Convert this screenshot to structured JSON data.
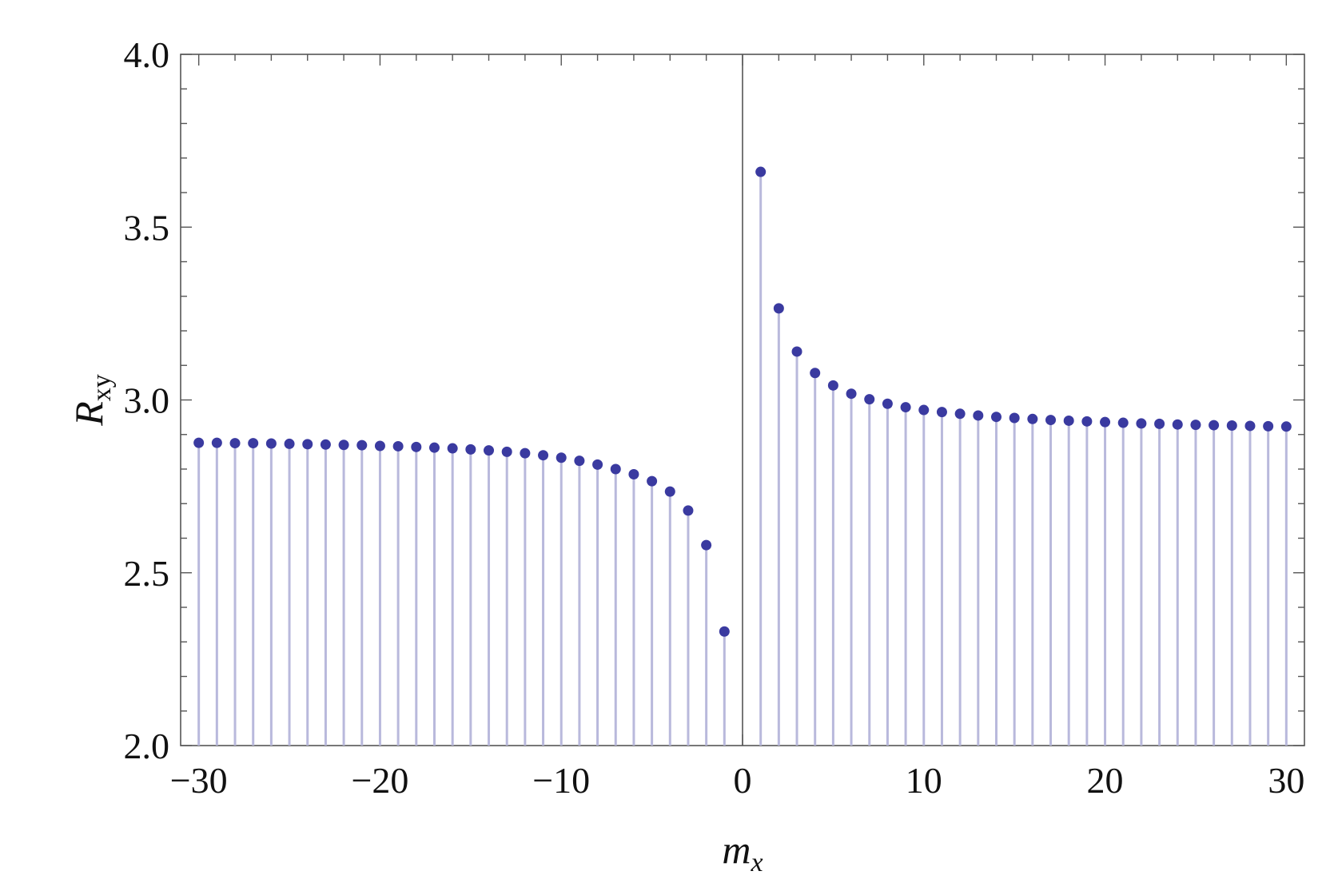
{
  "chart_data": {
    "type": "scatter",
    "style": "stem",
    "title": "",
    "xlabel": {
      "main": "m",
      "sub": "x"
    },
    "ylabel": {
      "main": "R",
      "sub": "xy"
    },
    "xlim": [
      -31,
      31
    ],
    "ylim": [
      2.0,
      4.0
    ],
    "x_ticks": [
      -30,
      -20,
      -10,
      0,
      10,
      20,
      30
    ],
    "x_tick_labels": [
      "−30",
      "−20",
      "−10",
      "0",
      "10",
      "20",
      "30"
    ],
    "y_ticks": [
      2.0,
      2.5,
      3.0,
      3.5,
      4.0
    ],
    "y_tick_labels": [
      "2.0",
      "2.5",
      "3.0",
      "3.5",
      "4.0"
    ],
    "grid": false,
    "colors": {
      "marker": "#3a3aa0",
      "stem": "#b9b9dc",
      "axis": "#555555"
    },
    "series": [
      {
        "x": [
          -30,
          -29,
          -28,
          -27,
          -26,
          -25,
          -24,
          -23,
          -22,
          -21,
          -20,
          -19,
          -18,
          -17,
          -16,
          -15,
          -14,
          -13,
          -12,
          -11,
          -10,
          -9,
          -8,
          -7,
          -6,
          -5,
          -4,
          -3,
          -2,
          -1,
          1,
          2,
          3,
          4,
          5,
          6,
          7,
          8,
          9,
          10,
          11,
          12,
          13,
          14,
          15,
          16,
          17,
          18,
          19,
          20,
          21,
          22,
          23,
          24,
          25,
          26,
          27,
          28,
          29,
          30
        ],
        "y": [
          2.876,
          2.876,
          2.875,
          2.875,
          2.874,
          2.873,
          2.872,
          2.871,
          2.87,
          2.869,
          2.867,
          2.866,
          2.864,
          2.862,
          2.86,
          2.857,
          2.854,
          2.85,
          2.846,
          2.84,
          2.833,
          2.824,
          2.813,
          2.8,
          2.785,
          2.765,
          2.735,
          2.68,
          2.58,
          2.33,
          3.66,
          3.265,
          3.14,
          3.078,
          3.042,
          3.018,
          3.002,
          2.989,
          2.979,
          2.971,
          2.965,
          2.96,
          2.955,
          2.951,
          2.948,
          2.945,
          2.942,
          2.94,
          2.938,
          2.936,
          2.934,
          2.932,
          2.931,
          2.929,
          2.928,
          2.927,
          2.926,
          2.925,
          2.924,
          2.923
        ]
      }
    ]
  }
}
